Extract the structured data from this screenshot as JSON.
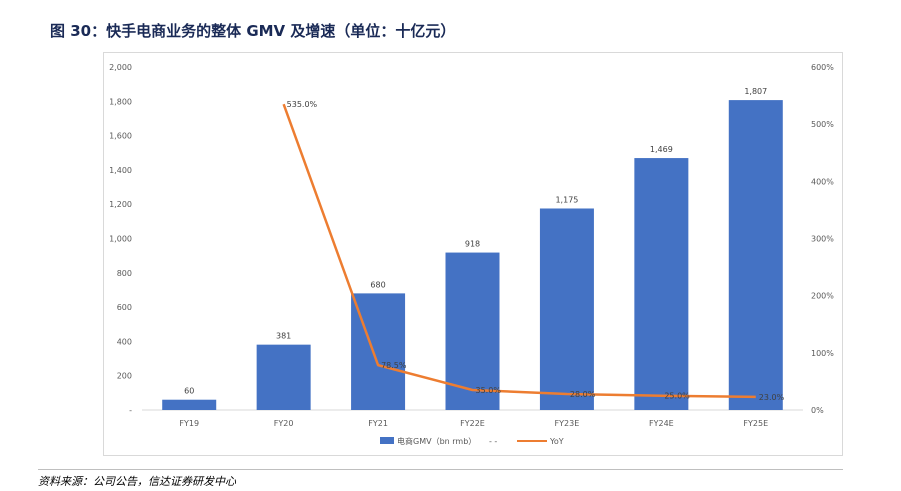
{
  "figure": {
    "title": "图 30：快手电商业务的整体 GMV 及增速（单位：十亿元）",
    "source": "资料来源：公司公告，信达证券研发中心"
  },
  "chart_data": {
    "type": "bar",
    "categories": [
      "FY19",
      "FY20",
      "FY21",
      "FY22E",
      "FY23E",
      "FY24E",
      "FY25E"
    ],
    "series": [
      {
        "name": "电商GMV（bn rmb）",
        "type": "bar",
        "axis": "left",
        "color": "#4472C4",
        "values": [
          60,
          381,
          680,
          918,
          1175,
          1469,
          1807
        ],
        "labels": [
          "60",
          "381",
          "680",
          "918",
          "1,175",
          "1,469",
          "1,807"
        ]
      },
      {
        "name": "YoY",
        "type": "line",
        "axis": "right",
        "color": "#ED7D31",
        "values": [
          null,
          535.0,
          78.5,
          35.0,
          28.0,
          25.0,
          23.0
        ],
        "labels": [
          "",
          "535.0%",
          "78.5%",
          "35.0%",
          "28.0%",
          "25.0%",
          "23.0%"
        ]
      }
    ],
    "y_left": {
      "min": 0,
      "max": 2000,
      "ticks": [
        "-",
        "200",
        "400",
        "600",
        "800",
        "1,000",
        "1,200",
        "1,400",
        "1,600",
        "1,800",
        "2,000"
      ]
    },
    "y_right": {
      "min": 0,
      "max": 600,
      "ticks": [
        "0%",
        "100%",
        "200%",
        "300%",
        "400%",
        "500%",
        "600%"
      ]
    },
    "legend": {
      "position": "bottom",
      "extra_marker": "-  -"
    },
    "grid": false
  }
}
